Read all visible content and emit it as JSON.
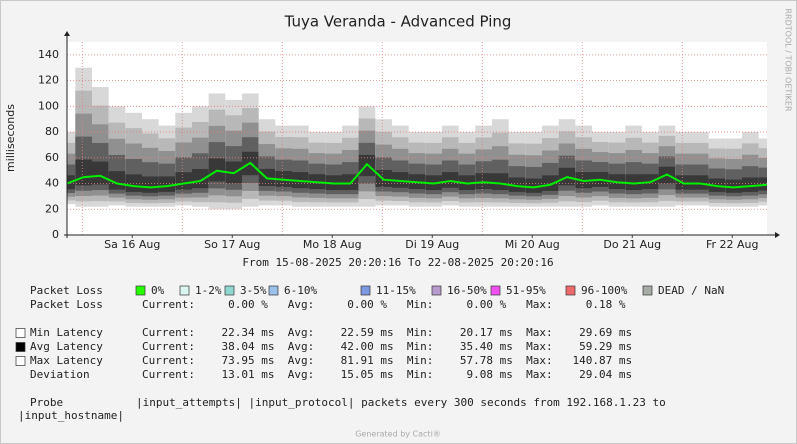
{
  "chart_data": {
    "type": "smokeping",
    "title": "Tuya Veranda - Advanced Ping",
    "y_label": "milliseconds",
    "side_label": "RRDTOOL / TOBI OETIKER",
    "xlim": [
      "2025-08-15T20:20:16",
      "2025-08-22T20:20:16"
    ],
    "xticks": [
      {
        "value": "2025-08-16T12:00:00",
        "label": "Sa 16 Aug"
      },
      {
        "value": "2025-08-17T12:00:00",
        "label": "So 17 Aug"
      },
      {
        "value": "2025-08-18T12:00:00",
        "label": "Mo 18 Aug"
      },
      {
        "value": "2025-08-19T12:00:00",
        "label": "Di 19 Aug"
      },
      {
        "value": "2025-08-20T12:00:00",
        "label": "Mi 20 Aug"
      },
      {
        "value": "2025-08-21T12:00:00",
        "label": "Do 21 Aug"
      },
      {
        "value": "2025-08-22T12:00:00",
        "label": "Fr 22 Aug"
      }
    ],
    "xgrid": [
      "2025-08-16T00:00:00",
      "2025-08-17T00:00:00",
      "2025-08-18T00:00:00",
      "2025-08-19T00:00:00",
      "2025-08-20T00:00:00",
      "2025-08-21T00:00:00",
      "2025-08-22T00:00:00"
    ],
    "ylim": [
      0,
      150
    ],
    "yticks": [
      0,
      20,
      40,
      60,
      80,
      100,
      120,
      140
    ],
    "grid": true,
    "x": [
      "2025-08-15T20:20:16",
      "2025-08-16T00:20:16",
      "2025-08-16T04:20:16",
      "2025-08-16T08:20:16",
      "2025-08-16T12:20:16",
      "2025-08-16T16:20:16",
      "2025-08-16T20:20:16",
      "2025-08-17T00:20:16",
      "2025-08-17T04:20:16",
      "2025-08-17T08:20:16",
      "2025-08-17T12:20:16",
      "2025-08-17T16:20:16",
      "2025-08-17T20:20:16",
      "2025-08-18T00:20:16",
      "2025-08-18T04:20:16",
      "2025-08-18T08:20:16",
      "2025-08-18T12:20:16",
      "2025-08-18T16:20:16",
      "2025-08-18T20:20:16",
      "2025-08-19T00:20:16",
      "2025-08-19T04:20:16",
      "2025-08-19T08:20:16",
      "2025-08-19T12:20:16",
      "2025-08-19T16:20:16",
      "2025-08-19T20:20:16",
      "2025-08-20T00:20:16",
      "2025-08-20T04:20:16",
      "2025-08-20T08:20:16",
      "2025-08-20T12:20:16",
      "2025-08-20T16:20:16",
      "2025-08-20T20:20:16",
      "2025-08-21T00:20:16",
      "2025-08-21T04:20:16",
      "2025-08-21T08:20:16",
      "2025-08-21T12:20:16",
      "2025-08-21T16:20:16",
      "2025-08-21T20:20:16",
      "2025-08-22T00:20:16",
      "2025-08-22T04:20:16",
      "2025-08-22T08:20:16",
      "2025-08-22T12:20:16",
      "2025-08-22T16:20:16",
      "2025-08-22T20:20:16"
    ],
    "median": {
      "color": "#00ee00",
      "values": [
        40,
        45,
        46,
        40,
        38,
        37,
        38,
        40,
        42,
        50,
        48,
        56,
        44,
        43,
        42,
        41,
        40,
        40,
        55,
        43,
        42,
        41,
        40,
        42,
        40,
        41,
        40,
        38,
        37,
        39,
        45,
        42,
        43,
        41,
        40,
        41,
        47,
        40,
        40,
        38,
        37,
        38,
        39
      ]
    },
    "smoke": {
      "color": "#a0a0a0",
      "low": [
        24,
        22,
        22,
        23,
        22,
        22,
        22,
        23,
        22,
        20,
        20,
        22,
        23,
        23,
        22,
        22,
        22,
        22,
        22,
        23,
        23,
        22,
        22,
        23,
        22,
        22,
        22,
        22,
        22,
        22,
        22,
        22,
        23,
        22,
        22,
        22,
        22,
        23,
        23,
        22,
        22,
        22,
        23
      ],
      "high": [
        80,
        130,
        115,
        100,
        95,
        90,
        85,
        95,
        100,
        110,
        105,
        110,
        90,
        85,
        85,
        80,
        80,
        85,
        100,
        90,
        85,
        80,
        80,
        85,
        80,
        85,
        90,
        80,
        80,
        85,
        90,
        85,
        80,
        80,
        85,
        80,
        85,
        80,
        80,
        75,
        75,
        80,
        75
      ]
    },
    "period": "From 15-08-2025 20:20:16 To 22-08-2025 20:20:16",
    "loss_legend": {
      "name": "Packet Loss",
      "levels": [
        {
          "label": "0%",
          "color": "#26ff00"
        },
        {
          "label": "1-2%",
          "color": "#d9f5ef"
        },
        {
          "label": "3-5%",
          "color": "#8fd8d2"
        },
        {
          "label": "6-10%",
          "color": "#9bc0ec"
        },
        {
          "label": "11-15%",
          "color": "#7d98e0"
        },
        {
          "label": "16-50%",
          "color": "#b59acb"
        },
        {
          "label": "51-95%",
          "color": "#f050f0"
        },
        {
          "label": "96-100%",
          "color": "#ee6a6a"
        },
        {
          "label": "DEAD / NaN",
          "color": "#a4aca4"
        }
      ]
    },
    "stats": [
      {
        "name": "Packet Loss",
        "text": "Current:     0.00 %   Avg:     0.00 %   Min:     0.00 %   Max:     0.18 %"
      },
      {
        "name": "Min Latency",
        "swatch": "#ffffff",
        "text": "Current:    22.34 ms  Avg:    22.59 ms  Min:    20.17 ms  Max:    29.69 ms"
      },
      {
        "name": "Avg Latency",
        "swatch": "#000000",
        "text": "Current:    38.04 ms  Avg:    42.00 ms  Min:    35.40 ms  Max:    59.29 ms"
      },
      {
        "name": "Max Latency",
        "swatch": "#ffffff",
        "text": "Current:    73.95 ms  Avg:    81.91 ms  Min:    57.78 ms  Max:   140.87 ms"
      },
      {
        "name": "Deviation",
        "text": "Current:    13.01 ms  Avg:    15.05 ms  Min:     9.08 ms  Max:    29.04 ms"
      }
    ],
    "probe": [
      "Probe           |input_attempts| |input_protocol| packets every 300 seconds from 192.168.1.23 to",
      "|input_hostname|"
    ],
    "footer": "Generated by Cacti®"
  }
}
